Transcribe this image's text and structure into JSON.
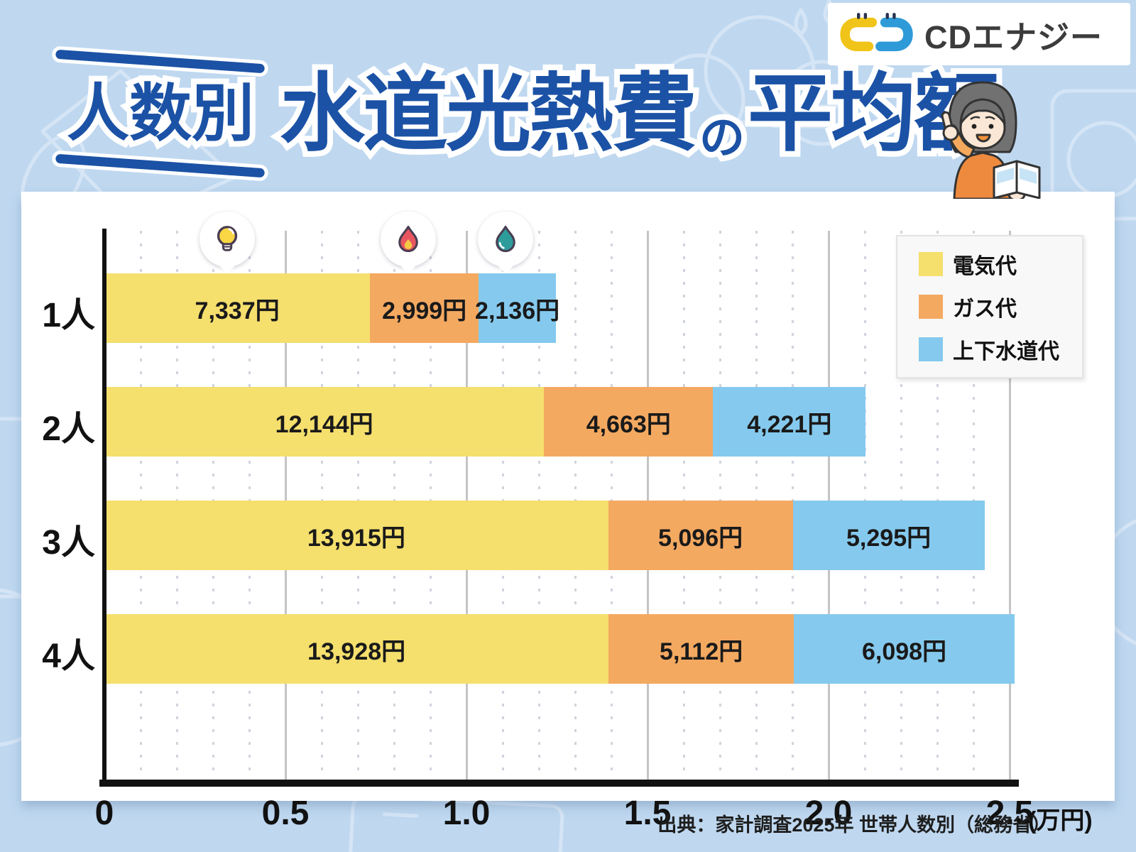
{
  "logo": {
    "text": "CDエナジー",
    "mark_yellow": "#F0C419",
    "mark_blue": "#2E9BD8"
  },
  "title": {
    "prefix": "人数別",
    "main": "水道光熱費",
    "particle": "の",
    "suffix": "平均額",
    "color": "#1B52A5"
  },
  "chart_data": {
    "type": "bar",
    "orientation": "horizontal",
    "stacked": true,
    "title": "人数別 水道光熱費の平均額",
    "categories": [
      "1人",
      "2人",
      "3人",
      "4人"
    ],
    "series": [
      {
        "name": "電気代",
        "color": "#F5DF6D",
        "values": [
          7337,
          12144,
          13915,
          13928
        ],
        "labels": [
          "7,337円",
          "12,144円",
          "13,915円",
          "13,928円"
        ]
      },
      {
        "name": "ガス代",
        "color": "#F4A961",
        "values": [
          2999,
          4663,
          5096,
          5112
        ],
        "labels": [
          "2,999円",
          "4,663円",
          "5,096円",
          "5,112円"
        ]
      },
      {
        "name": "上下水道代",
        "color": "#85CAEE",
        "values": [
          2136,
          4221,
          5295,
          6098
        ],
        "labels": [
          "2,136円",
          "4,221円",
          "5,295円",
          "6,098円"
        ]
      }
    ],
    "x_ticks": [
      0,
      0.5,
      1.0,
      1.5,
      2.0,
      2.5
    ],
    "x_tick_labels": [
      "0",
      "0.5",
      "1.0",
      "1.5",
      "2.0",
      "2.5"
    ],
    "x_unit_label": "(万円)",
    "xlim": [
      0,
      2.5
    ],
    "yen_per_axis_unit": 10000,
    "grid": true,
    "legend_position": "top-right",
    "markers": [
      {
        "name": "lightbulb-icon",
        "series": "電気代"
      },
      {
        "name": "flame-icon",
        "series": "ガス代"
      },
      {
        "name": "waterdrop-icon",
        "series": "上下水道代"
      }
    ]
  },
  "source": "出典：家計調査2025年 世帯人数別（総務省）"
}
